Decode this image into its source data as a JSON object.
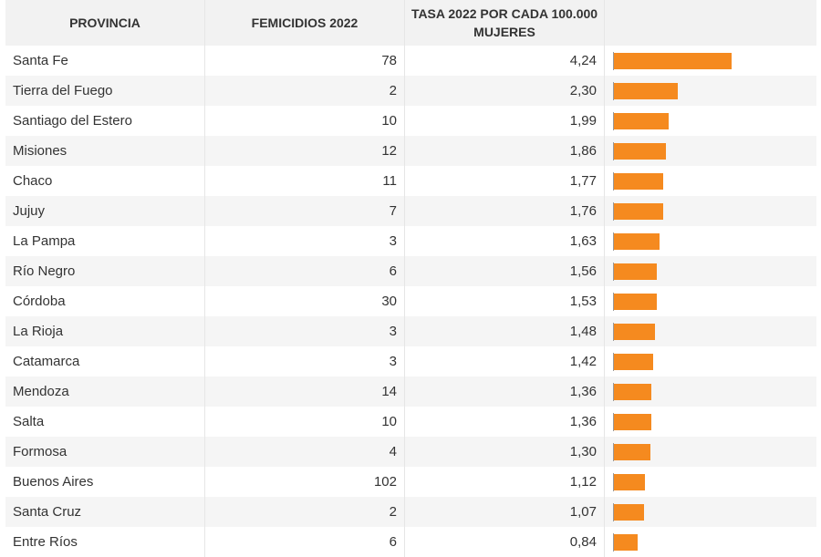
{
  "chart_data": {
    "type": "table",
    "columns": [
      "PROVINCIA",
      "FEMICIDIOS 2022",
      "TASA 2022 POR CADA 100.000 MUJERES",
      ""
    ],
    "bar_color": "#f58a1f",
    "rows": [
      {
        "provincia": "Santa Fe",
        "femicidios": "78",
        "tasa": "4,24",
        "value": 4.24
      },
      {
        "provincia": "Tierra del Fuego",
        "femicidios": "2",
        "tasa": "2,30",
        "value": 2.3
      },
      {
        "provincia": "Santiago del Estero",
        "femicidios": "10",
        "tasa": "1,99",
        "value": 1.99
      },
      {
        "provincia": "Misiones",
        "femicidios": "12",
        "tasa": "1,86",
        "value": 1.86
      },
      {
        "provincia": "Chaco",
        "femicidios": "11",
        "tasa": "1,77",
        "value": 1.77
      },
      {
        "provincia": "Jujuy",
        "femicidios": "7",
        "tasa": "1,76",
        "value": 1.76
      },
      {
        "provincia": "La Pampa",
        "femicidios": "3",
        "tasa": "1,63",
        "value": 1.63
      },
      {
        "provincia": "Río Negro",
        "femicidios": "6",
        "tasa": "1,56",
        "value": 1.56
      },
      {
        "provincia": "Córdoba",
        "femicidios": "30",
        "tasa": "1,53",
        "value": 1.53
      },
      {
        "provincia": "La Rioja",
        "femicidios": "3",
        "tasa": "1,48",
        "value": 1.48
      },
      {
        "provincia": "Catamarca",
        "femicidios": "3",
        "tasa": "1,42",
        "value": 1.42
      },
      {
        "provincia": "Mendoza",
        "femicidios": "14",
        "tasa": "1,36",
        "value": 1.36
      },
      {
        "provincia": "Salta",
        "femicidios": "10",
        "tasa": "1,36",
        "value": 1.36
      },
      {
        "provincia": "Formosa",
        "femicidios": "4",
        "tasa": "1,30",
        "value": 1.3
      },
      {
        "provincia": "Buenos Aires",
        "femicidios": "102",
        "tasa": "1,12",
        "value": 1.12
      },
      {
        "provincia": "Santa Cruz",
        "femicidios": "2",
        "tasa": "1,07",
        "value": 1.07
      },
      {
        "provincia": "Entre Ríos",
        "femicidios": "6",
        "tasa": "0,84",
        "value": 0.84
      }
    ]
  }
}
